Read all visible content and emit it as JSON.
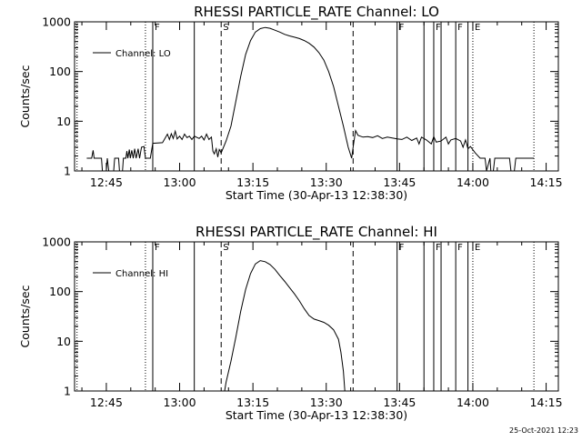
{
  "footer_text": "25-Oct-2021 12:23",
  "chart_data": [
    {
      "type": "line",
      "title": "RHESSI PARTICLE_RATE Channel: LO",
      "xlabel": "Start Time (30-Apr-13 12:38:30)",
      "ylabel": "Counts/sec",
      "x_unit": "minutes since 12:38:30",
      "y_scale": "log",
      "xlim": [
        0,
        99
      ],
      "ylim": [
        1,
        1000
      ],
      "x_ticks": [
        {
          "t": 6.5,
          "label": "12:45"
        },
        {
          "t": 21.5,
          "label": "13:00"
        },
        {
          "t": 36.5,
          "label": "13:15"
        },
        {
          "t": 51.5,
          "label": "13:30"
        },
        {
          "t": 66.5,
          "label": "13:45"
        },
        {
          "t": 81.5,
          "label": "14:00"
        },
        {
          "t": 96.5,
          "label": "14:15"
        }
      ],
      "y_ticks": [
        {
          "v": 1,
          "label": "1"
        },
        {
          "v": 10,
          "label": "10"
        },
        {
          "v": 100,
          "label": "100"
        },
        {
          "v": 1000,
          "label": "1000"
        }
      ],
      "legend": {
        "label": "Channel: LO",
        "position": "top-left"
      },
      "markers": [
        {
          "t": 0.5,
          "style": "dotted",
          "label": ""
        },
        {
          "t": 14.5,
          "style": "dotted",
          "label": ""
        },
        {
          "t": 16.0,
          "style": "solid",
          "label": "F"
        },
        {
          "t": 24.5,
          "style": "solid",
          "label": ""
        },
        {
          "t": 30.0,
          "style": "dashed",
          "label": "S"
        },
        {
          "t": 57.0,
          "style": "dashed",
          "label": ""
        },
        {
          "t": 66.0,
          "style": "solid",
          "label": "F"
        },
        {
          "t": 71.5,
          "style": "solid",
          "label": ""
        },
        {
          "t": 73.5,
          "style": "solid",
          "label": "F"
        },
        {
          "t": 75.0,
          "style": "solid",
          "label": ""
        },
        {
          "t": 78.0,
          "style": "solid",
          "label": "F"
        },
        {
          "t": 80.5,
          "style": "solid",
          "label": ""
        },
        {
          "t": 81.5,
          "style": "dotted",
          "label": "E"
        },
        {
          "t": 94.0,
          "style": "dotted",
          "label": ""
        }
      ],
      "segments": [
        [
          [
            2.5,
            1.8
          ],
          [
            3.5,
            1.8
          ],
          [
            3.8,
            2.6
          ],
          [
            4.0,
            1.8
          ],
          [
            5.5,
            1.8
          ],
          [
            5.7,
            1.0
          ],
          [
            6.5,
            1.0
          ],
          [
            6.7,
            1.8
          ],
          [
            7.0,
            1.0
          ],
          [
            8.0,
            1.0
          ],
          [
            8.2,
            1.8
          ],
          [
            9.0,
            1.8
          ],
          [
            9.2,
            1.0
          ],
          [
            9.8,
            1.0
          ],
          [
            10.0,
            1.8
          ],
          [
            10.5,
            1.8
          ],
          [
            10.7,
            2.5
          ],
          [
            10.9,
            1.8
          ],
          [
            11.2,
            2.7
          ],
          [
            11.4,
            1.8
          ],
          [
            11.7,
            2.6
          ],
          [
            12.0,
            1.8
          ],
          [
            12.3,
            2.8
          ],
          [
            12.6,
            1.8
          ],
          [
            13.0,
            2.8
          ],
          [
            13.3,
            1.8
          ],
          [
            13.7,
            3.0
          ],
          [
            14.2,
            3.1
          ],
          [
            14.5,
            1.8
          ],
          [
            15.5,
            1.8
          ],
          [
            16.0,
            3.6
          ],
          [
            18.0,
            3.7
          ],
          [
            18.5,
            4.5
          ],
          [
            19.0,
            5.5
          ],
          [
            19.4,
            4.3
          ],
          [
            19.8,
            5.6
          ],
          [
            20.2,
            4.5
          ],
          [
            20.6,
            6.3
          ],
          [
            21.0,
            4.4
          ],
          [
            21.5,
            5.0
          ],
          [
            22.0,
            4.3
          ],
          [
            22.5,
            5.5
          ],
          [
            23.0,
            4.7
          ],
          [
            23.5,
            5.0
          ],
          [
            24.0,
            4.3
          ],
          [
            24.5,
            5.0
          ],
          [
            25.5,
            4.5
          ],
          [
            26.0,
            5.0
          ],
          [
            26.5,
            4.2
          ],
          [
            27.0,
            5.5
          ],
          [
            27.5,
            4.3
          ],
          [
            28.0,
            4.8
          ],
          [
            28.3,
            2.5
          ],
          [
            28.6,
            2.2
          ],
          [
            29.0,
            2.8
          ],
          [
            29.3,
            1.9
          ],
          [
            29.6,
            2.7
          ],
          [
            30.0,
            2.3
          ],
          [
            31.0,
            4.0
          ],
          [
            32.0,
            8.0
          ],
          [
            33.0,
            25.0
          ],
          [
            34.0,
            80.0
          ],
          [
            35.0,
            220.0
          ],
          [
            36.0,
            420.0
          ],
          [
            37.0,
            620.0
          ],
          [
            38.0,
            730.0
          ],
          [
            39.0,
            770.0
          ],
          [
            40.0,
            740.0
          ],
          [
            41.0,
            680.0
          ],
          [
            42.0,
            620.0
          ],
          [
            43.0,
            560.0
          ],
          [
            44.0,
            520.0
          ],
          [
            45.0,
            490.0
          ],
          [
            46.0,
            460.0
          ],
          [
            47.0,
            420.0
          ],
          [
            48.0,
            370.0
          ],
          [
            49.0,
            310.0
          ],
          [
            50.0,
            240.0
          ],
          [
            51.0,
            170.0
          ],
          [
            52.0,
            100.0
          ],
          [
            53.0,
            50.0
          ],
          [
            54.0,
            20.0
          ],
          [
            55.0,
            8.0
          ],
          [
            56.0,
            3.0
          ],
          [
            56.7,
            1.8
          ],
          [
            57.0,
            3.0
          ],
          [
            57.5,
            6.5
          ],
          [
            58.0,
            5.2
          ],
          [
            59.0,
            4.8
          ],
          [
            60.0,
            4.9
          ],
          [
            61.0,
            4.7
          ],
          [
            62.0,
            5.1
          ],
          [
            63.0,
            4.5
          ],
          [
            64.0,
            4.8
          ],
          [
            65.0,
            4.6
          ],
          [
            66.0,
            4.4
          ],
          [
            67.0,
            4.3
          ],
          [
            68.0,
            4.8
          ],
          [
            69.0,
            4.1
          ],
          [
            70.0,
            4.6
          ],
          [
            70.5,
            3.5
          ],
          [
            71.0,
            4.8
          ],
          [
            72.0,
            4.2
          ],
          [
            73.0,
            3.5
          ],
          [
            73.5,
            4.9
          ],
          [
            74.0,
            3.8
          ],
          [
            75.0,
            4.0
          ],
          [
            76.0,
            4.8
          ],
          [
            76.5,
            3.5
          ],
          [
            77.0,
            4.2
          ],
          [
            78.0,
            4.5
          ],
          [
            79.0,
            4.0
          ],
          [
            79.5,
            3.0
          ],
          [
            80.0,
            4.2
          ],
          [
            80.5,
            2.8
          ],
          [
            81.0,
            3.1
          ],
          [
            82.0,
            2.3
          ],
          [
            83.0,
            1.8
          ],
          [
            84.0,
            1.8
          ],
          [
            84.3,
            1.0
          ],
          [
            85.0,
            1.8
          ],
          [
            85.2,
            1.0
          ],
          [
            85.7,
            1.0
          ],
          [
            86.0,
            1.8
          ],
          [
            89.0,
            1.8
          ],
          [
            89.3,
            1.0
          ],
          [
            90.0,
            1.0
          ],
          [
            90.3,
            1.8
          ],
          [
            94.0,
            1.8
          ]
        ]
      ]
    },
    {
      "type": "line",
      "title": "RHESSI PARTICLE_RATE Channel: HI",
      "xlabel": "Start Time (30-Apr-13 12:38:30)",
      "ylabel": "Counts/sec",
      "x_unit": "minutes since 12:38:30",
      "y_scale": "log",
      "xlim": [
        0,
        99
      ],
      "ylim": [
        1,
        1000
      ],
      "x_ticks": [
        {
          "t": 6.5,
          "label": "12:45"
        },
        {
          "t": 21.5,
          "label": "13:00"
        },
        {
          "t": 36.5,
          "label": "13:15"
        },
        {
          "t": 51.5,
          "label": "13:30"
        },
        {
          "t": 66.5,
          "label": "13:45"
        },
        {
          "t": 81.5,
          "label": "14:00"
        },
        {
          "t": 96.5,
          "label": "14:15"
        }
      ],
      "y_ticks": [
        {
          "v": 1,
          "label": "1"
        },
        {
          "v": 10,
          "label": "10"
        },
        {
          "v": 100,
          "label": "100"
        },
        {
          "v": 1000,
          "label": "1000"
        }
      ],
      "legend": {
        "label": "Channel: HI",
        "position": "top-left"
      },
      "markers": [
        {
          "t": 0.5,
          "style": "dotted",
          "label": ""
        },
        {
          "t": 14.5,
          "style": "dotted",
          "label": ""
        },
        {
          "t": 16.0,
          "style": "solid",
          "label": "F"
        },
        {
          "t": 24.5,
          "style": "solid",
          "label": ""
        },
        {
          "t": 30.0,
          "style": "dashed",
          "label": "S"
        },
        {
          "t": 57.0,
          "style": "dashed",
          "label": ""
        },
        {
          "t": 66.0,
          "style": "solid",
          "label": "F"
        },
        {
          "t": 71.5,
          "style": "solid",
          "label": ""
        },
        {
          "t": 73.5,
          "style": "solid",
          "label": "F"
        },
        {
          "t": 75.0,
          "style": "solid",
          "label": ""
        },
        {
          "t": 78.0,
          "style": "solid",
          "label": "F"
        },
        {
          "t": 80.5,
          "style": "solid",
          "label": ""
        },
        {
          "t": 81.5,
          "style": "dotted",
          "label": "E"
        },
        {
          "t": 94.0,
          "style": "dotted",
          "label": ""
        }
      ],
      "segments": [
        [
          [
            30.7,
            1.0
          ],
          [
            31.0,
            1.5
          ],
          [
            32.0,
            4.0
          ],
          [
            33.0,
            12.0
          ],
          [
            34.0,
            40.0
          ],
          [
            35.0,
            110.0
          ],
          [
            36.0,
            230.0
          ],
          [
            37.0,
            360.0
          ],
          [
            38.0,
            420.0
          ],
          [
            39.0,
            400.0
          ],
          [
            40.0,
            350.0
          ],
          [
            41.0,
            280.0
          ],
          [
            42.0,
            210.0
          ],
          [
            43.0,
            160.0
          ],
          [
            44.0,
            120.0
          ],
          [
            45.0,
            90.0
          ],
          [
            46.0,
            65.0
          ],
          [
            47.0,
            45.0
          ],
          [
            48.0,
            33.0
          ],
          [
            49.0,
            28.0
          ],
          [
            50.0,
            26.0
          ],
          [
            51.0,
            24.0
          ],
          [
            52.0,
            21.0
          ],
          [
            53.0,
            17.0
          ],
          [
            54.0,
            11.0
          ],
          [
            54.5,
            6.0
          ],
          [
            55.0,
            2.5
          ],
          [
            55.3,
            1.0
          ]
        ]
      ]
    }
  ]
}
